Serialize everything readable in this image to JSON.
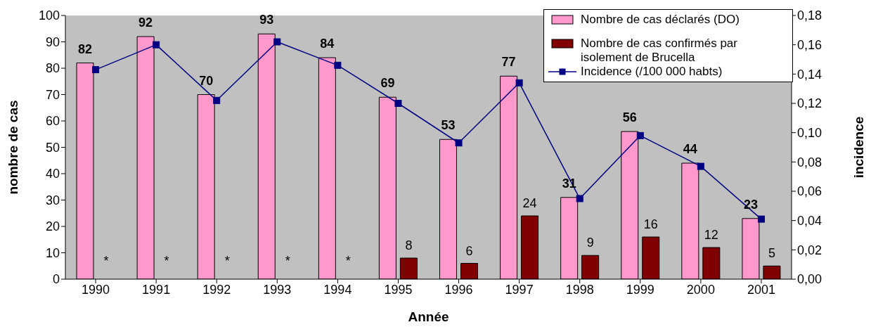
{
  "chart_data": {
    "type": "bar",
    "xlabel": "Année",
    "ylabel": "nombre de cas",
    "y2label": "incidence",
    "categories": [
      "1990",
      "1991",
      "1992",
      "1993",
      "1994",
      "1995",
      "1996",
      "1997",
      "1998",
      "1999",
      "2000",
      "2001"
    ],
    "series": [
      {
        "name": "Nombre de cas déclarés (DO)",
        "color": "#ff99cc",
        "values": [
          82,
          92,
          70,
          93,
          84,
          69,
          53,
          77,
          31,
          56,
          44,
          23
        ],
        "value_labels": [
          "82",
          "92",
          "70",
          "93",
          "84",
          "69",
          "53",
          "77",
          "31",
          "56",
          "44",
          "23"
        ]
      },
      {
        "name": "Nombre de cas confirmés par isolement de Brucella",
        "color": "#800000",
        "values": [
          null,
          null,
          null,
          null,
          null,
          8,
          6,
          24,
          9,
          16,
          12,
          5
        ],
        "value_labels": [
          null,
          null,
          null,
          null,
          null,
          "8",
          "6",
          "24",
          "9",
          "16",
          "12",
          "5"
        ]
      },
      {
        "name": "Incidence (/100 000 habts)",
        "type": "line",
        "axis": "y2",
        "color": "#000080",
        "marker": "square",
        "values": [
          0.143,
          0.16,
          0.122,
          0.162,
          0.146,
          0.12,
          0.093,
          0.134,
          0.055,
          0.098,
          0.077,
          0.041
        ]
      }
    ],
    "ylim": [
      0,
      100
    ],
    "yticks": [
      0,
      10,
      20,
      30,
      40,
      50,
      60,
      70,
      80,
      90,
      100
    ],
    "y2lim": [
      0,
      0.18
    ],
    "y2ticks": [
      {
        "value": 0,
        "label": "0,00"
      },
      {
        "value": 0.02,
        "label": "0,02"
      },
      {
        "value": 0.04,
        "label": "0,04"
      },
      {
        "value": 0.06,
        "label": "0,06"
      },
      {
        "value": 0.08,
        "label": "0,08"
      },
      {
        "value": 0.1,
        "label": "0,10"
      },
      {
        "value": 0.12,
        "label": "0,12"
      },
      {
        "value": 0.14,
        "label": "0,14"
      },
      {
        "value": 0.16,
        "label": "0,16"
      },
      {
        "value": 0.18,
        "label": "0,18"
      }
    ],
    "annotations": [
      {
        "text": "*",
        "x": "1990",
        "y": 7
      },
      {
        "text": "*",
        "x": "1991",
        "y": 7
      },
      {
        "text": "*",
        "x": "1992",
        "y": 7
      },
      {
        "text": "*",
        "x": "1993",
        "y": 7
      },
      {
        "text": "*",
        "x": "1994",
        "y": 7
      }
    ],
    "legend": "top right",
    "grid": false
  }
}
